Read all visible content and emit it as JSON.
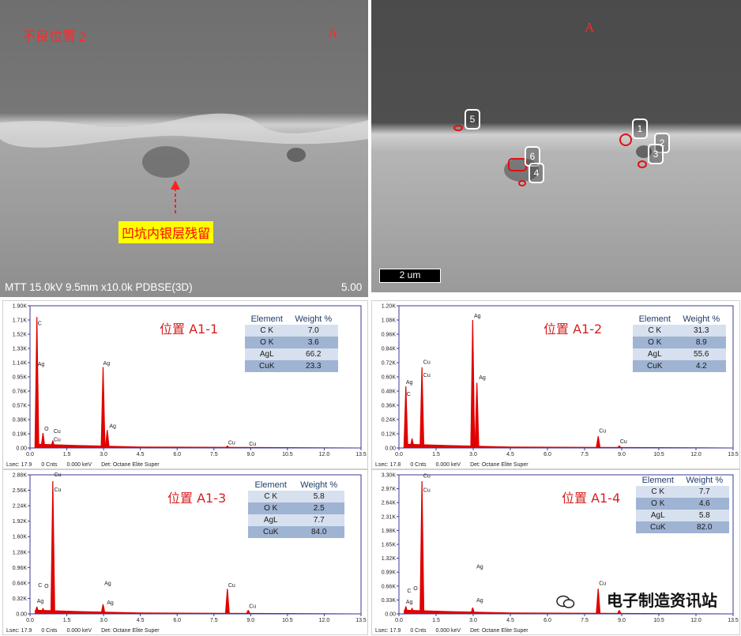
{
  "sem_left": {
    "title": "不良位置 2",
    "mark": "A",
    "callout": "凹坑内银层残留",
    "info": "MTT 15.0kV 9.5mm x10.0k PDBSE(3D)",
    "scale": "5.00"
  },
  "sem_right": {
    "mark": "A",
    "scalebar": "2 um",
    "markers": [
      "1",
      "2",
      "3",
      "4",
      "5",
      "6"
    ]
  },
  "watermark": "电子制造资讯站",
  "colors": {
    "spectrum": "#e00000",
    "axis": "#3a3a9a",
    "label_red": "#d62020"
  },
  "panels": [
    {
      "title": "位置 A1-1",
      "table_header": [
        "Element",
        "Weight %"
      ],
      "table": [
        [
          "C K",
          "7.0"
        ],
        [
          "O K",
          "3.6"
        ],
        [
          "AgL",
          "66.2"
        ],
        [
          "CuK",
          "23.3"
        ]
      ],
      "footer": [
        "Lsec: 17.9",
        "0 Cnts",
        "0.000 keV",
        "Det: Octane Elite Super"
      ]
    },
    {
      "title": "位置 A1-2",
      "table_header": [
        "Element",
        "Weight %"
      ],
      "table": [
        [
          "C K",
          "31.3"
        ],
        [
          "O K",
          "8.9"
        ],
        [
          "AgL",
          "55.6"
        ],
        [
          "CuK",
          "4.2"
        ]
      ],
      "footer": [
        "Lsec: 17.8",
        "0 Cnts",
        "0.000 keV",
        "Det: Octane Elite Super"
      ]
    },
    {
      "title": "位置 A1-3",
      "table_header": [
        "Element",
        "Weight %"
      ],
      "table": [
        [
          "C K",
          "5.8"
        ],
        [
          "O K",
          "2.5"
        ],
        [
          "AgL",
          "7.7"
        ],
        [
          "CuK",
          "84.0"
        ]
      ],
      "footer": [
        "Lsec: 17.9",
        "0 Cnts",
        "0.000 keV",
        "Det: Octane Elite Super"
      ]
    },
    {
      "title": "位置 A1-4",
      "table_header": [
        "Element",
        "Weight %"
      ],
      "table": [
        [
          "C K",
          "7.7"
        ],
        [
          "O K",
          "4.6"
        ],
        [
          "AgL",
          "5.8"
        ],
        [
          "CuK",
          "82.0"
        ]
      ],
      "footer": [
        "Lsec: 17.9",
        "0 Cnts",
        "0.000 keV",
        "Det: Octane Elite Super"
      ]
    }
  ],
  "chart_data": [
    {
      "type": "line",
      "x_ticks": [
        "0.0",
        "1.5",
        "3.0",
        "4.5",
        "6.0",
        "7.5",
        "9.0",
        "10.5",
        "12.0",
        "13.5"
      ],
      "y_ticks": [
        "0.00",
        "0.19K",
        "0.38K",
        "0.57K",
        "0.76K",
        "0.95K",
        "1.14K",
        "1.33K",
        "1.52K",
        "1.71K",
        "1.90K"
      ],
      "xlim": [
        0,
        13.5
      ],
      "ylim": [
        0,
        1900
      ],
      "peaks": [
        {
          "x": 0.28,
          "y": 1750,
          "label": "C"
        },
        {
          "x": 0.53,
          "y": 200,
          "label": "O"
        },
        {
          "x": 0.93,
          "y": 100,
          "label": "Cu"
        },
        {
          "x": 2.98,
          "y": 1080,
          "label": "Ag"
        },
        {
          "x": 3.15,
          "y": 240,
          "label": "Ag"
        },
        {
          "x": 8.05,
          "y": 30,
          "label": "Cu"
        },
        {
          "x": 8.9,
          "y": 10,
          "label": "Cu"
        }
      ],
      "peak_labels": [
        {
          "x": 0.28,
          "y": 1640,
          "text": "C"
        },
        {
          "x": 0.28,
          "y": 1100,
          "text": "Ag"
        },
        {
          "x": 0.55,
          "y": 230,
          "text": "O"
        },
        {
          "x": 0.93,
          "y": 200,
          "text": "Cu"
        },
        {
          "x": 0.93,
          "y": 90,
          "text": "Cu"
        },
        {
          "x": 2.95,
          "y": 1110,
          "text": "Ag"
        },
        {
          "x": 3.2,
          "y": 270,
          "text": "Ag"
        },
        {
          "x": 8.05,
          "y": 50,
          "text": "Cu"
        },
        {
          "x": 8.9,
          "y": 30,
          "text": "Cu"
        }
      ]
    },
    {
      "type": "line",
      "x_ticks": [
        "0.0",
        "1.5",
        "3.0",
        "4.5",
        "6.0",
        "7.5",
        "9.0",
        "10.5",
        "12.0",
        "13.5"
      ],
      "y_ticks": [
        "0.00",
        "0.12K",
        "0.24K",
        "0.36K",
        "0.48K",
        "0.60K",
        "0.72K",
        "0.84K",
        "0.96K",
        "1.08K",
        "1.20K"
      ],
      "xlim": [
        0,
        13.5
      ],
      "ylim": [
        0,
        1200
      ],
      "peaks": [
        {
          "x": 0.28,
          "y": 520,
          "label": "C"
        },
        {
          "x": 0.53,
          "y": 80,
          "label": "O"
        },
        {
          "x": 0.93,
          "y": 680,
          "label": "Cu"
        },
        {
          "x": 2.98,
          "y": 1080,
          "label": "Ag"
        },
        {
          "x": 3.15,
          "y": 550,
          "label": "Ag"
        },
        {
          "x": 8.05,
          "y": 100,
          "label": "Cu"
        },
        {
          "x": 8.9,
          "y": 20,
          "label": "Cu"
        }
      ],
      "peak_labels": [
        {
          "x": 0.25,
          "y": 540,
          "text": "Ag"
        },
        {
          "x": 0.28,
          "y": 440,
          "text": "C"
        },
        {
          "x": 0.95,
          "y": 710,
          "text": "Cu"
        },
        {
          "x": 0.95,
          "y": 600,
          "text": "Cu"
        },
        {
          "x": 3.0,
          "y": 1100,
          "text": "Ag"
        },
        {
          "x": 3.2,
          "y": 580,
          "text": "Ag"
        },
        {
          "x": 8.05,
          "y": 130,
          "text": "Cu"
        },
        {
          "x": 8.9,
          "y": 40,
          "text": "Cu"
        }
      ]
    },
    {
      "type": "line",
      "x_ticks": [
        "0.0",
        "1.5",
        "3.0",
        "4.5",
        "6.0",
        "7.5",
        "9.0",
        "10.5",
        "12.0",
        "13.5"
      ],
      "y_ticks": [
        "0.00",
        "0.32K",
        "0.64K",
        "0.96K",
        "1.28K",
        "1.60K",
        "1.92K",
        "2.24K",
        "2.56K",
        "2.88K"
      ],
      "xlim": [
        0,
        13.5
      ],
      "ylim": [
        0,
        2880
      ],
      "peaks": [
        {
          "x": 0.28,
          "y": 150,
          "label": "C"
        },
        {
          "x": 0.53,
          "y": 120,
          "label": "O"
        },
        {
          "x": 0.93,
          "y": 2750,
          "label": "Cu"
        },
        {
          "x": 2.98,
          "y": 200,
          "label": "Ag"
        },
        {
          "x": 8.05,
          "y": 520,
          "label": "Cu"
        },
        {
          "x": 8.9,
          "y": 80,
          "label": "Cu"
        }
      ],
      "peak_labels": [
        {
          "x": 0.95,
          "y": 2850,
          "text": "Cu"
        },
        {
          "x": 0.95,
          "y": 2540,
          "text": "Cu"
        },
        {
          "x": 0.3,
          "y": 560,
          "text": "C"
        },
        {
          "x": 0.55,
          "y": 540,
          "text": "O"
        },
        {
          "x": 0.25,
          "y": 230,
          "text": "Ag"
        },
        {
          "x": 3.0,
          "y": 600,
          "text": "Ag"
        },
        {
          "x": 3.1,
          "y": 200,
          "text": "Ag"
        },
        {
          "x": 8.05,
          "y": 560,
          "text": "Cu"
        },
        {
          "x": 8.9,
          "y": 120,
          "text": "Cu"
        }
      ]
    },
    {
      "type": "line",
      "x_ticks": [
        "0.0",
        "1.5",
        "3.0",
        "4.5",
        "6.0",
        "7.5",
        "9.0",
        "10.5",
        "12.0",
        "13.5"
      ],
      "y_ticks": [
        "0.00",
        "0.33K",
        "0.66K",
        "0.99K",
        "1.32K",
        "1.65K",
        "1.98K",
        "2.31K",
        "2.64K",
        "2.97K",
        "3.30K"
      ],
      "xlim": [
        0,
        13.5
      ],
      "ylim": [
        0,
        3300
      ],
      "peaks": [
        {
          "x": 0.28,
          "y": 180,
          "label": "C"
        },
        {
          "x": 0.53,
          "y": 140,
          "label": "O"
        },
        {
          "x": 0.93,
          "y": 3150,
          "label": "Cu"
        },
        {
          "x": 2.98,
          "y": 150,
          "label": "Ag"
        },
        {
          "x": 8.05,
          "y": 600,
          "label": "Cu"
        },
        {
          "x": 8.9,
          "y": 90,
          "label": "Cu"
        }
      ],
      "peak_labels": [
        {
          "x": 0.95,
          "y": 3230,
          "text": "Cu"
        },
        {
          "x": 0.95,
          "y": 2900,
          "text": "Cu"
        },
        {
          "x": 0.3,
          "y": 510,
          "text": "C"
        },
        {
          "x": 0.55,
          "y": 560,
          "text": "O"
        },
        {
          "x": 0.25,
          "y": 240,
          "text": "Ag"
        },
        {
          "x": 3.1,
          "y": 1080,
          "text": "Ag"
        },
        {
          "x": 3.1,
          "y": 280,
          "text": "Ag"
        },
        {
          "x": 8.05,
          "y": 680,
          "text": "Cu"
        }
      ]
    }
  ]
}
